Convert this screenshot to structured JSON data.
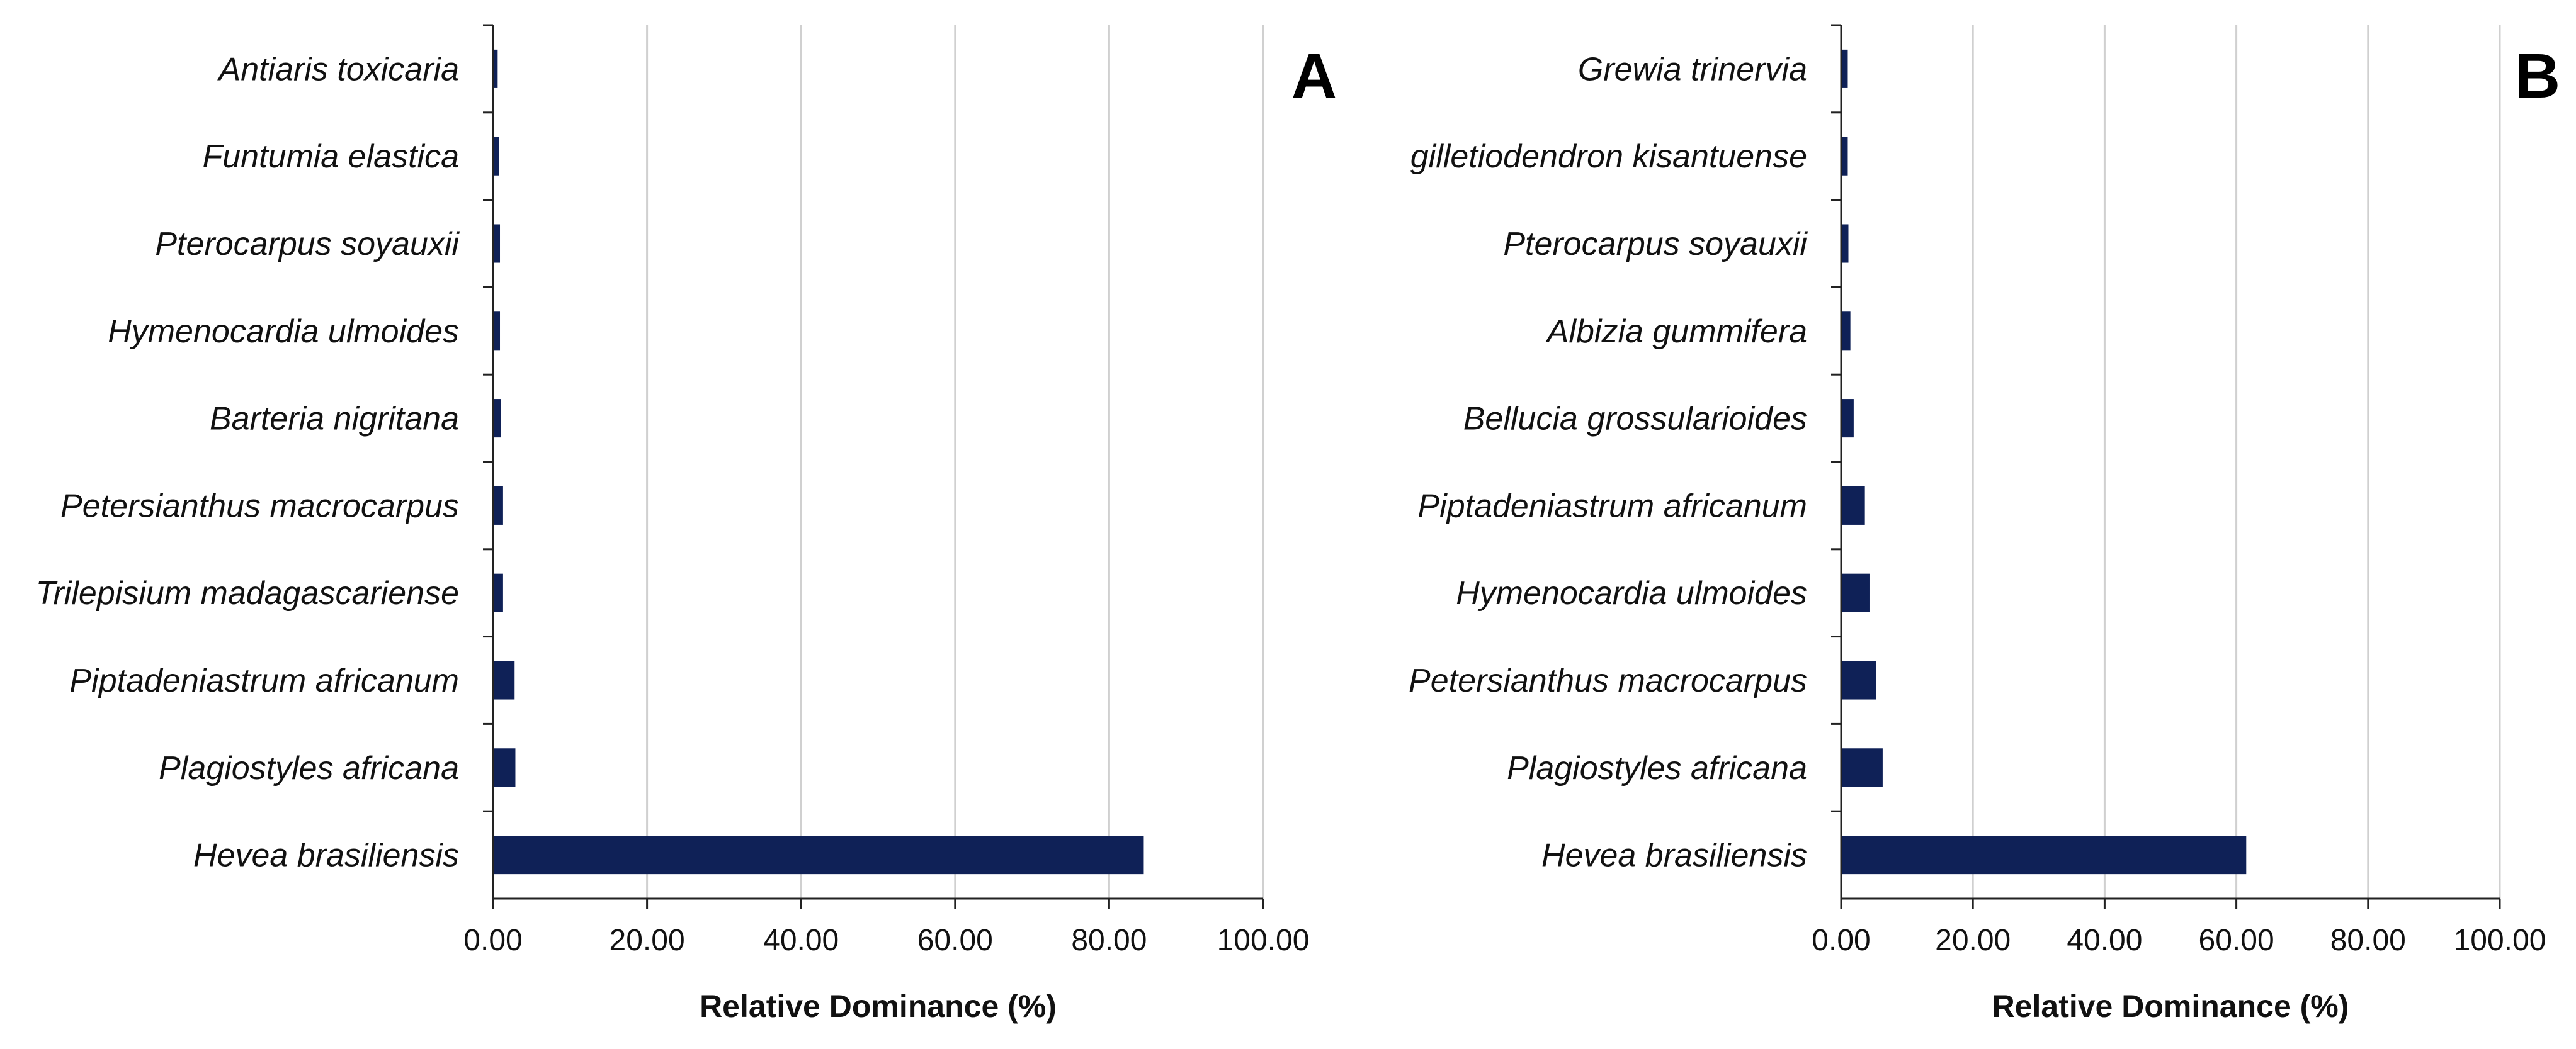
{
  "chart_data": [
    {
      "type": "bar",
      "orientation": "horizontal",
      "panel_label": "A",
      "xlabel": "Relative Dominance (%)",
      "xlim": [
        0,
        100
      ],
      "x_ticks": [
        "0.00",
        "20.00",
        "40.00",
        "60.00",
        "80.00",
        "100.00"
      ],
      "grid": "vertical",
      "bar_color": "#0f2157",
      "categories": [
        "Antiaris toxicaria",
        "Funtumia elastica",
        "Pterocarpus soyauxii",
        "Hymenocardia ulmoides",
        "Barteria nigritana",
        "Petersianthus macrocarpus",
        "Trilepisium madagascariense",
        "Piptadeniastrum africanum",
        "Plagiostyles africana",
        "Hevea brasiliensis"
      ],
      "values": [
        0.6,
        0.8,
        0.9,
        0.9,
        1.0,
        1.3,
        1.3,
        2.8,
        2.9,
        84.5
      ]
    },
    {
      "type": "bar",
      "orientation": "horizontal",
      "panel_label": "B",
      "xlabel": "Relative Dominance (%)",
      "xlim": [
        0,
        100
      ],
      "x_ticks": [
        "0.00",
        "20.00",
        "40.00",
        "60.00",
        "80.00",
        "100.00"
      ],
      "grid": "vertical",
      "bar_color": "#0f2157",
      "categories": [
        "Grewia trinervia",
        "gilletiodendron kisantuense",
        "Pterocarpus soyauxii",
        "Albizia gummifera",
        "Bellucia grossularioides",
        "Piptadeniastrum africanum",
        "Hymenocardia ulmoides",
        "Petersianthus macrocarpus",
        "Plagiostyles africana",
        "Hevea brasiliensis"
      ],
      "values": [
        1.0,
        1.0,
        1.1,
        1.4,
        1.9,
        3.6,
        4.3,
        5.3,
        6.3,
        61.5
      ]
    }
  ]
}
